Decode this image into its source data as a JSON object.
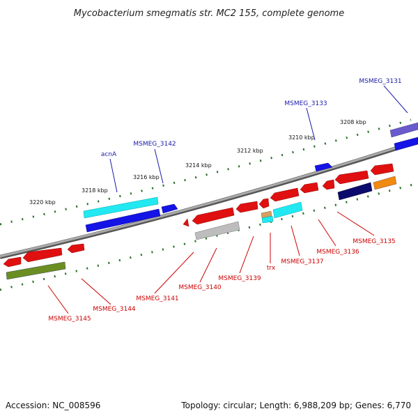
{
  "title": "Mycobacterium smegmatis str. MC2 155, complete genome",
  "footer": {
    "accession": "Accession: NC_008596",
    "summary": "Topology: circular; Length: 6,988,209 bp; Genes: 6,770"
  },
  "ticks": [
    "3220 kbp",
    "3218 kbp",
    "3216 kbp",
    "3214 kbp",
    "3212 kbp",
    "3210 kbp",
    "3208 kbp"
  ],
  "forward_labels": [
    "acnA",
    "MSMEG_3142",
    "MSMEG_3133",
    "MSMEG_3131"
  ],
  "reverse_labels": [
    "MSMEG_3145",
    "MSMEG_3144",
    "MSMEG_3141",
    "MSMEG_3140",
    "MSMEG_3139",
    "trx",
    "MSMEG_3137",
    "MSMEG_3136",
    "MSMEG_3135"
  ],
  "colors": {
    "backbone": "#888888",
    "forward_label": "#1a1aa8",
    "reverse_label": "#cc0000",
    "red": "#e01010",
    "blue": "#1414e6",
    "cyan": "#22e8f2",
    "gray": "#bdbdbd",
    "olive": "#6b8e23",
    "navy": "#0b0b6e",
    "orange": "#f08a10",
    "purple": "#6a5acd",
    "tan": "#d2a060"
  }
}
